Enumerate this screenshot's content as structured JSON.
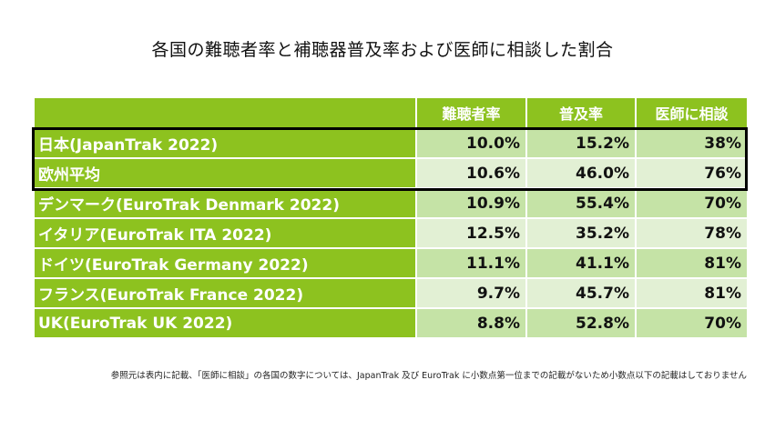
{
  "title": "各国の難聴者率と補聴器普及率および医師に相談した割合",
  "note": "参照元は表内に記載、「医師に相談」の各国の数字については、JapanTrak 及び EuroTrak に小数点第一位までの記載がないため小数点以下の記載はしておりません",
  "colors": {
    "header_green": "#8dc21f",
    "row_dark": "#c5e3a6",
    "row_light": "#e2f0d4",
    "highlight_border": "#000000"
  },
  "chart_data": {
    "type": "table",
    "title": "各国の難聴者率と補聴器普及率および医師に相談した割合",
    "columns": [
      "",
      "難聴者率",
      "普及率",
      "医師に相談"
    ],
    "rows": [
      {
        "label": "日本(JapanTrak 2022)",
        "values": [
          "10.0%",
          "15.2%",
          "38%"
        ]
      },
      {
        "label": "欧州平均",
        "values": [
          "10.6%",
          "46.0%",
          "76%"
        ]
      },
      {
        "label": "デンマーク(EuroTrak Denmark 2022)",
        "values": [
          "10.9%",
          "55.4%",
          "70%"
        ]
      },
      {
        "label": "イタリア(EuroTrak ITA 2022)",
        "values": [
          "12.5%",
          "35.2%",
          "78%"
        ]
      },
      {
        "label": "ドイツ(EuroTrak Germany 2022)",
        "values": [
          "11.1%",
          "41.1%",
          "81%"
        ]
      },
      {
        "label": "フランス(EuroTrak France 2022)",
        "values": [
          "9.7%",
          "45.7%",
          "81%"
        ]
      },
      {
        "label": "UK(EuroTrak UK 2022)",
        "values": [
          "8.8%",
          "52.8%",
          "70%"
        ]
      }
    ],
    "highlighted_rows": [
      "日本(JapanTrak 2022)",
      "欧州平均"
    ]
  }
}
